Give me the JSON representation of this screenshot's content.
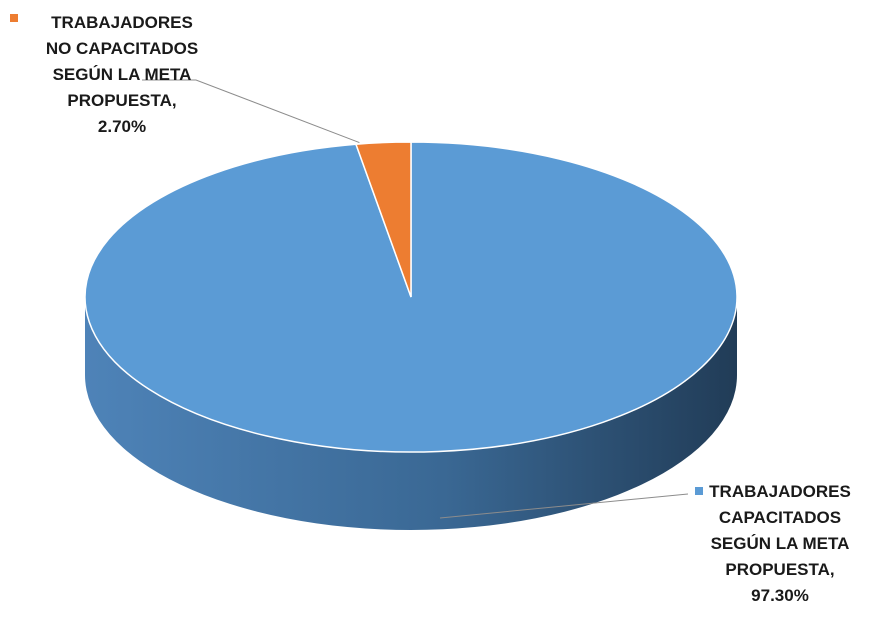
{
  "chart_data": {
    "type": "pie",
    "title": "",
    "series": [
      {
        "name": "",
        "slices": [
          {
            "label_lines": [
              "TRABAJADORES",
              "NO CAPACITADOS",
              "SEGÚN LA META",
              "PROPUESTA,",
              "2.70%"
            ],
            "value": 2.7,
            "color": "#ED7D31"
          },
          {
            "label_lines": [
              "TRABAJADORES",
              "CAPACITADOS",
              "SEGÚN LA META",
              "PROPUESTA,",
              "97.30%"
            ],
            "value": 97.3,
            "color": "#5B9BD5"
          }
        ]
      }
    ],
    "legend": "none",
    "style": "3d-pie"
  }
}
